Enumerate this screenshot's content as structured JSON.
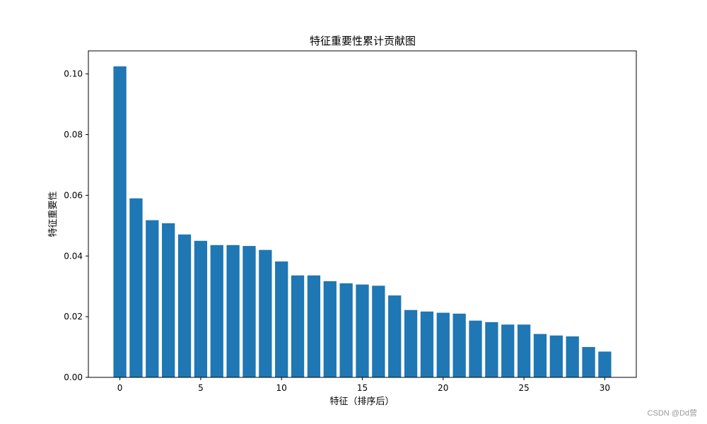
{
  "chart_data": {
    "type": "bar",
    "title": "特征重要性累计贡献图",
    "xlabel": "特征（排序后）",
    "ylabel": "特征重要性",
    "x": [
      0,
      1,
      2,
      3,
      4,
      5,
      6,
      7,
      8,
      9,
      10,
      11,
      12,
      13,
      14,
      15,
      16,
      17,
      18,
      19,
      20,
      21,
      22,
      23,
      24,
      25,
      26,
      27,
      28,
      29,
      30
    ],
    "values": [
      0.1025,
      0.059,
      0.0518,
      0.0508,
      0.0471,
      0.045,
      0.0436,
      0.0436,
      0.0433,
      0.042,
      0.0382,
      0.0336,
      0.0336,
      0.0317,
      0.031,
      0.0306,
      0.0302,
      0.027,
      0.0222,
      0.0217,
      0.0213,
      0.021,
      0.0187,
      0.0182,
      0.0174,
      0.0174,
      0.0143,
      0.0138,
      0.0135,
      0.01,
      0.0085
    ],
    "xlim": [
      -1.95,
      31.95
    ],
    "ylim": [
      0,
      0.1076
    ],
    "xticks": [
      "0",
      "5",
      "10",
      "15",
      "20",
      "25",
      "30"
    ],
    "yticks": [
      "0.00",
      "0.02",
      "0.04",
      "0.06",
      "0.08",
      "0.10"
    ],
    "bar_color": "#1f77b4",
    "grid": false
  },
  "watermark": "CSDN @Dd营"
}
